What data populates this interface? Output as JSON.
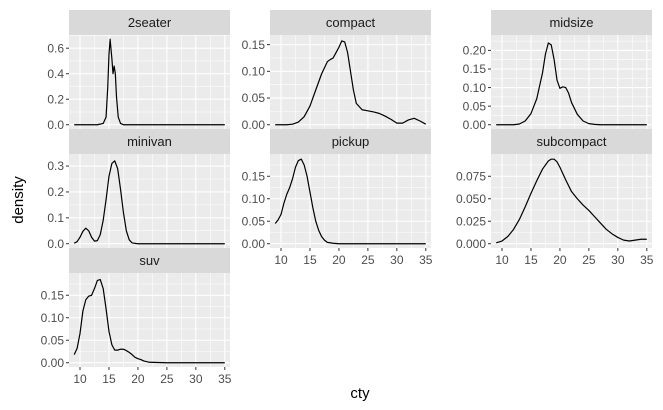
{
  "chart_data": {
    "type": "line",
    "xlabel": "cty",
    "ylabel": "density",
    "xlim": [
      8.1,
      35.9
    ],
    "x_ticks": [
      "10",
      "15",
      "20",
      "25",
      "30",
      "35"
    ],
    "grid": true,
    "facet_by": "class",
    "panels": [
      {
        "name": "2seater",
        "ylim": [
          -0.0335,
          0.7035
        ],
        "y_ticks": [
          "0.0",
          "0.2",
          "0.4",
          "0.6"
        ],
        "x": [
          9,
          13,
          14,
          14.5,
          14.8,
          15,
          15.2,
          15.5,
          15.7,
          15.9,
          16.1,
          16.3,
          16.6,
          17,
          17.5,
          20,
          25,
          30,
          35
        ],
        "y": [
          0,
          0,
          0.01,
          0.06,
          0.3,
          0.55,
          0.67,
          0.52,
          0.4,
          0.46,
          0.4,
          0.22,
          0.06,
          0.01,
          0,
          0,
          0,
          0,
          0
        ]
      },
      {
        "name": "compact",
        "ylim": [
          -0.008,
          0.168
        ],
        "y_ticks": [
          "0.00",
          "0.05",
          "0.10",
          "0.15"
        ],
        "x": [
          9,
          10,
          11,
          12,
          13,
          14,
          15,
          16,
          17,
          18,
          18.5,
          19,
          20,
          20.5,
          21,
          21.5,
          22,
          22.5,
          23,
          24,
          25,
          26,
          27,
          28,
          29,
          30,
          31,
          32,
          33,
          34,
          35
        ],
        "y": [
          0,
          0,
          0,
          0.001,
          0.005,
          0.015,
          0.035,
          0.065,
          0.095,
          0.118,
          0.122,
          0.125,
          0.145,
          0.157,
          0.155,
          0.135,
          0.1,
          0.065,
          0.04,
          0.028,
          0.026,
          0.024,
          0.021,
          0.016,
          0.01,
          0.003,
          0.003,
          0.009,
          0.012,
          0.007,
          0.001
        ]
      },
      {
        "name": "midsize",
        "ylim": [
          -0.0115,
          0.2415
        ],
        "y_ticks": [
          "0.00",
          "0.05",
          "0.10",
          "0.15",
          "0.20"
        ],
        "x": [
          9,
          12,
          13,
          14,
          15,
          16,
          17,
          17.5,
          18,
          18.5,
          19,
          19.5,
          20,
          20.5,
          21,
          21.5,
          22,
          23,
          24,
          25,
          26,
          27,
          28,
          30,
          35
        ],
        "y": [
          0,
          0,
          0.002,
          0.01,
          0.03,
          0.07,
          0.14,
          0.19,
          0.22,
          0.215,
          0.175,
          0.12,
          0.098,
          0.102,
          0.1,
          0.085,
          0.06,
          0.028,
          0.01,
          0.003,
          0.001,
          0,
          0,
          0,
          0
        ]
      },
      {
        "name": "minivan",
        "ylim": [
          -0.0165,
          0.3465
        ],
        "y_ticks": [
          "0.0",
          "0.1",
          "0.2",
          "0.3"
        ],
        "x": [
          9,
          9.5,
          10,
          10.5,
          11,
          11.5,
          12,
          12.5,
          13,
          13.5,
          14,
          14.5,
          15,
          15.5,
          16,
          16.5,
          17,
          17.5,
          18,
          18.5,
          19,
          20,
          21,
          25,
          30,
          35
        ],
        "y": [
          0.002,
          0.008,
          0.025,
          0.048,
          0.06,
          0.05,
          0.025,
          0.01,
          0.012,
          0.035,
          0.09,
          0.17,
          0.26,
          0.31,
          0.32,
          0.29,
          0.21,
          0.12,
          0.05,
          0.015,
          0.003,
          0,
          0,
          0,
          0,
          0
        ]
      },
      {
        "name": "pickup",
        "ylim": [
          -0.0095,
          0.1995
        ],
        "y_ticks": [
          "0.00",
          "0.05",
          "0.10",
          "0.15"
        ],
        "x": [
          9,
          9.5,
          10,
          10.5,
          11,
          11.5,
          12,
          12.5,
          13,
          13.5,
          14,
          14.5,
          15,
          15.5,
          16,
          16.5,
          17,
          17.5,
          18,
          19,
          20,
          21,
          25,
          30,
          35
        ],
        "y": [
          0.045,
          0.053,
          0.065,
          0.09,
          0.11,
          0.125,
          0.145,
          0.17,
          0.185,
          0.188,
          0.175,
          0.15,
          0.115,
          0.08,
          0.05,
          0.03,
          0.016,
          0.008,
          0.003,
          0.001,
          0,
          0,
          0,
          0,
          0
        ]
      },
      {
        "name": "subcompact",
        "ylim": [
          -0.00475,
          0.09975
        ],
        "y_ticks": [
          "0.000",
          "0.025",
          "0.050",
          "0.075"
        ],
        "x": [
          9,
          10,
          11,
          12,
          13,
          14,
          15,
          16,
          17,
          18,
          18.5,
          19,
          19.5,
          20,
          21,
          22,
          23,
          24,
          25,
          26,
          27,
          28,
          29,
          30,
          31,
          32,
          33,
          34,
          35
        ],
        "y": [
          0.001,
          0.003,
          0.008,
          0.016,
          0.027,
          0.041,
          0.056,
          0.07,
          0.083,
          0.092,
          0.094,
          0.094,
          0.091,
          0.085,
          0.071,
          0.058,
          0.05,
          0.043,
          0.037,
          0.03,
          0.023,
          0.016,
          0.011,
          0.007,
          0.004,
          0.003,
          0.004,
          0.005,
          0.005
        ]
      },
      {
        "name": "suv",
        "ylim": [
          -0.0095,
          0.1995
        ],
        "y_ticks": [
          "0.00",
          "0.05",
          "0.10",
          "0.15"
        ],
        "x": [
          9,
          9.5,
          10,
          10.5,
          11,
          11.5,
          12,
          12.5,
          13,
          13.5,
          14,
          14.5,
          15,
          15.5,
          16,
          16.5,
          17,
          17.5,
          18,
          18.5,
          19,
          19.5,
          20,
          20.5,
          21,
          22,
          25,
          30,
          35
        ],
        "y": [
          0.018,
          0.032,
          0.065,
          0.115,
          0.14,
          0.148,
          0.15,
          0.165,
          0.183,
          0.185,
          0.165,
          0.12,
          0.07,
          0.04,
          0.028,
          0.028,
          0.03,
          0.03,
          0.027,
          0.023,
          0.018,
          0.012,
          0.009,
          0.007,
          0.004,
          0.001,
          0,
          0,
          0
        ]
      }
    ]
  }
}
